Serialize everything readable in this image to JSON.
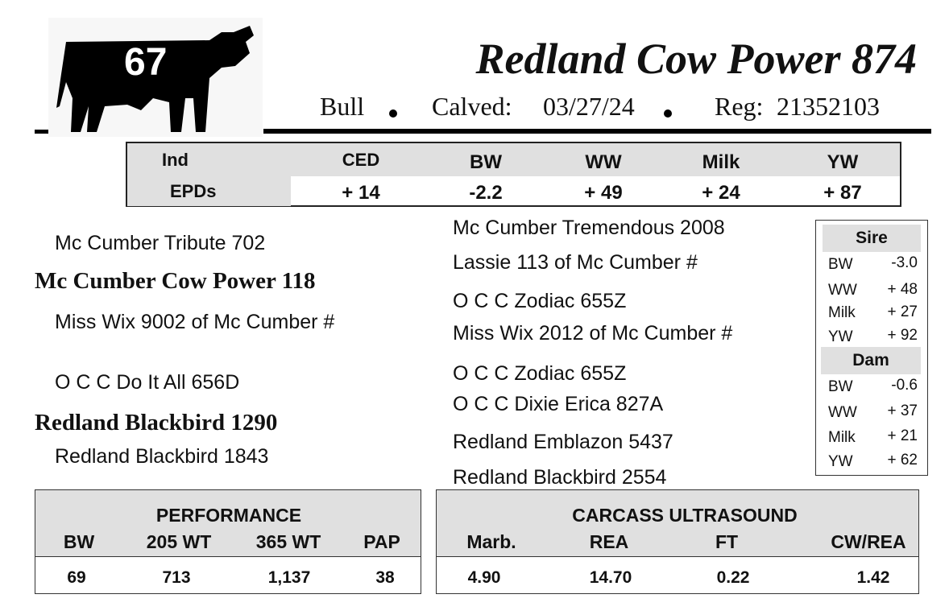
{
  "lot": {
    "number": "67",
    "icon": "bull-silhouette-icon"
  },
  "header": {
    "title": "Redland Cow Power 874",
    "sex": "Bull",
    "calved_label": "Calved:",
    "calved_date": "03/27/24",
    "reg_label": "Reg:",
    "reg_number": "21352103"
  },
  "epds": {
    "row_labels": [
      "Ind",
      "EPDs"
    ],
    "columns": [
      {
        "label": "CED",
        "value": "+ 14"
      },
      {
        "label": "BW",
        "value": "-2.2"
      },
      {
        "label": "WW",
        "value": "+ 49"
      },
      {
        "label": "Milk",
        "value": "+ 24"
      },
      {
        "label": "YW",
        "value": "+ 87"
      }
    ]
  },
  "pedigree": {
    "sire": "Mc Cumber Cow Power 118",
    "sire_sire": "Mc Cumber Tribute 702",
    "sire_dam": "Miss Wix 9002 of Mc Cumber #",
    "dam": "Redland Blackbird 1290",
    "dam_sire": "O C C Do It All 656D",
    "dam_dam": "Redland Blackbird 1843",
    "third_gen": [
      "Mc Cumber Tremendous 2008",
      "Lassie 113 of Mc Cumber #",
      "O C C Zodiac 655Z",
      "Miss Wix 2012 of Mc Cumber #",
      "O C C Zodiac 655Z",
      "O C C Dixie Erica 827A",
      "Redland Emblazon 5437",
      "Redland Blackbird 2554"
    ]
  },
  "parent_epds": {
    "sire": {
      "title": "Sire",
      "rows": [
        [
          "BW",
          "-3.0"
        ],
        [
          "WW",
          "+ 48"
        ],
        [
          "Milk",
          "+ 27"
        ],
        [
          "YW",
          "+ 92"
        ]
      ]
    },
    "dam": {
      "title": "Dam",
      "rows": [
        [
          "BW",
          "-0.6"
        ],
        [
          "WW",
          "+ 37"
        ],
        [
          "Milk",
          "+ 21"
        ],
        [
          "YW",
          "+ 62"
        ]
      ]
    }
  },
  "performance": {
    "title": "PERFORMANCE",
    "headers": [
      "BW",
      "205 WT",
      "365 WT",
      "PAP"
    ],
    "values": [
      "69",
      "713",
      "1,137",
      "38"
    ]
  },
  "carcass": {
    "title": "CARCASS ULTRASOUND",
    "headers": [
      "Marb.",
      "REA",
      "FT",
      "CW/REA"
    ],
    "values": [
      "4.90",
      "14.70",
      "0.22",
      "1.42"
    ]
  }
}
